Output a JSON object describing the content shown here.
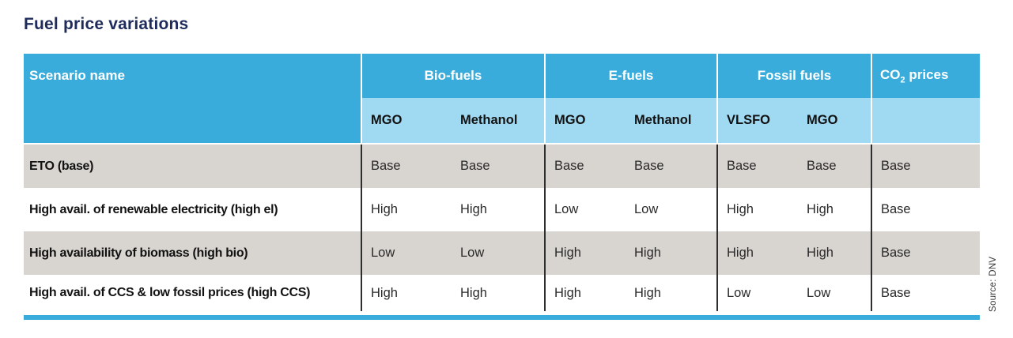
{
  "title": "Fuel price variations",
  "source_note": "Source: DNV",
  "colors": {
    "header_blue": "#39acdb",
    "subheader_blue": "#a0d9f2",
    "row_gray": "#d8d4d0",
    "row_white": "#ffffff",
    "bottom_bar_blue": "#39acdb",
    "title_navy": "#1f2b5b",
    "body_divider_dark": "#2e2e2e"
  },
  "table": {
    "scenario_header": "Scenario name",
    "groups": [
      {
        "label": "Bio-fuels",
        "sub": [
          "MGO",
          "Methanol"
        ]
      },
      {
        "label": "E-fuels",
        "sub": [
          "MGO",
          "Methanol"
        ]
      },
      {
        "label": "Fossil fuels",
        "sub": [
          "VLSFO",
          "MGO"
        ]
      },
      {
        "label_prefix": "CO",
        "label_subscript": "2",
        "label_suffix": " prices",
        "sub": []
      }
    ],
    "rows": [
      {
        "name": "ETO (base)",
        "bio": [
          "Base",
          "Base"
        ],
        "efuels": [
          "Base",
          "Base"
        ],
        "fossil": [
          "Base",
          "Base"
        ],
        "co2": "Base"
      },
      {
        "name": "High avail. of renewable electricity (high el)",
        "bio": [
          "High",
          "High"
        ],
        "efuels": [
          "Low",
          "Low"
        ],
        "fossil": [
          "High",
          "High"
        ],
        "co2": "Base"
      },
      {
        "name": "High availability of biomass (high bio)",
        "bio": [
          "Low",
          "Low"
        ],
        "efuels": [
          "High",
          "High"
        ],
        "fossil": [
          "High",
          "High"
        ],
        "co2": "Base"
      },
      {
        "name": "High avail. of CCS & low fossil prices (high CCS)",
        "bio": [
          "High",
          "High"
        ],
        "efuels": [
          "High",
          "High"
        ],
        "fossil": [
          "Low",
          "Low"
        ],
        "co2": "Base"
      }
    ]
  }
}
